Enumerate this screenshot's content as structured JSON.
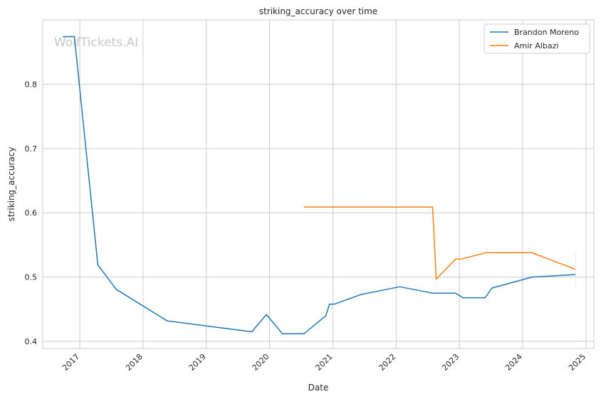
{
  "chart_data": {
    "type": "line",
    "title": "striking_accuracy over time",
    "xlabel": "Date",
    "ylabel": "striking_accuracy",
    "watermark": "WolfTickets.AI",
    "x_ticks": [
      "2017",
      "2018",
      "2019",
      "2020",
      "2021",
      "2022",
      "2023",
      "2024",
      "2025"
    ],
    "y_ticks": [
      "0.4",
      "0.5",
      "0.6",
      "0.7",
      "0.8"
    ],
    "xlim": [
      "2016-06-01",
      "2025-02-15"
    ],
    "ylim": [
      0.389,
      0.9
    ],
    "grid": true,
    "legend_position": "upper right",
    "series": [
      {
        "name": "Brandon Moreno",
        "color": "#1f77b4",
        "points": [
          [
            "2016-09-25",
            0.874
          ],
          [
            "2016-12-01",
            0.874
          ],
          [
            "2017-04-15",
            0.519
          ],
          [
            "2017-07-30",
            0.481
          ],
          [
            "2018-05-20",
            0.432
          ],
          [
            "2019-09-21",
            0.415
          ],
          [
            "2019-12-14",
            0.442
          ],
          [
            "2020-03-15",
            0.412
          ],
          [
            "2020-07-18",
            0.412
          ],
          [
            "2020-11-21",
            0.44
          ],
          [
            "2020-12-12",
            0.458
          ],
          [
            "2021-01-10",
            0.458
          ],
          [
            "2021-06-12",
            0.473
          ],
          [
            "2022-01-22",
            0.485
          ],
          [
            "2022-07-30",
            0.475
          ],
          [
            "2022-12-10",
            0.475
          ],
          [
            "2023-01-21",
            0.468
          ],
          [
            "2023-05-30",
            0.468
          ],
          [
            "2023-07-08",
            0.483
          ],
          [
            "2024-02-24",
            0.5
          ],
          [
            "2024-11-02",
            0.504
          ]
        ]
      },
      {
        "name": "Amir Albazi",
        "color": "#ff7f0e",
        "points": [
          [
            "2020-07-18",
            0.609
          ],
          [
            "2022-07-30",
            0.609
          ],
          [
            "2022-08-20",
            0.497
          ],
          [
            "2022-12-10",
            0.528
          ],
          [
            "2023-01-10",
            0.528
          ],
          [
            "2023-06-03",
            0.538
          ],
          [
            "2024-02-24",
            0.538
          ],
          [
            "2024-11-02",
            0.512
          ]
        ]
      }
    ]
  }
}
